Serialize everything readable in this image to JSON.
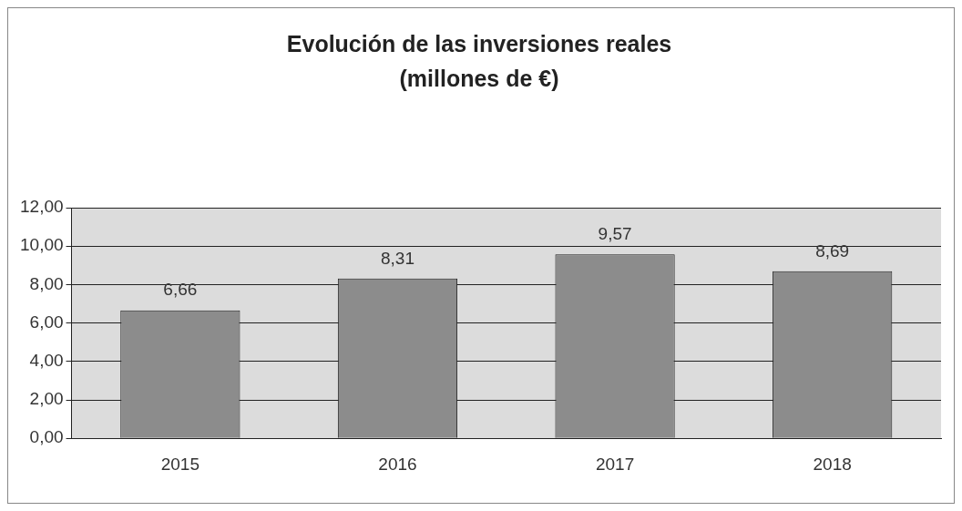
{
  "chart_data": {
    "type": "bar",
    "title": "Evolución de las inversiones reales",
    "subtitle": "(millones de €)",
    "categories": [
      "2015",
      "2016",
      "2017",
      "2018"
    ],
    "values": [
      6.66,
      8.31,
      9.57,
      8.69
    ],
    "color": "#8c8c8c",
    "value_labels": [
      "6,66",
      "8,31",
      "9,57",
      "8,69"
    ],
    "ylim": [
      0,
      12
    ],
    "yticks": [
      {
        "value": 0,
        "label": "0,00"
      },
      {
        "value": 2,
        "label": "2,00"
      },
      {
        "value": 4,
        "label": "4,00"
      },
      {
        "value": 6,
        "label": "6,00"
      },
      {
        "value": 8,
        "label": "8,00"
      },
      {
        "value": 10,
        "label": "10,00"
      },
      {
        "value": 12,
        "label": "12,00"
      }
    ],
    "grid": "y",
    "legend": false
  }
}
